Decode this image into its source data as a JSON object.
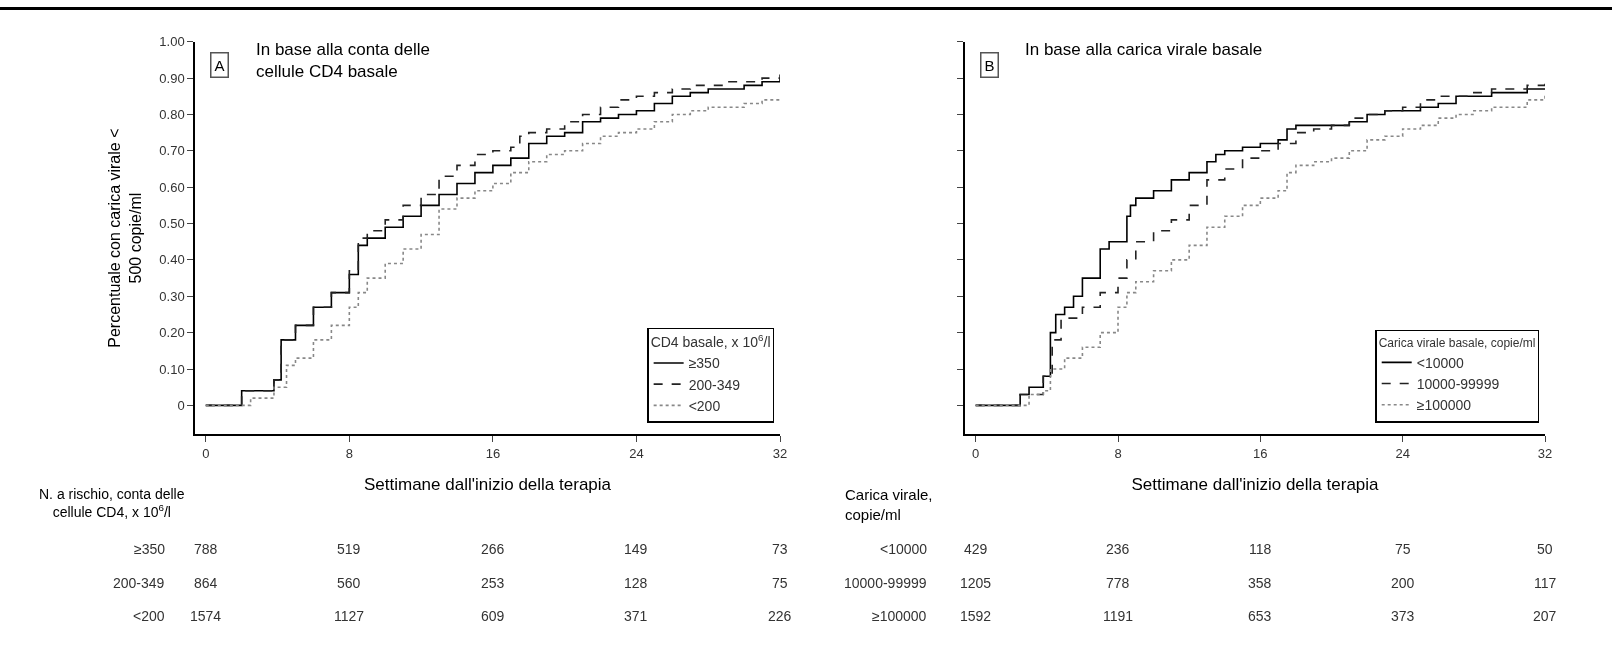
{
  "chart_data": [
    {
      "type": "step",
      "title": "In base alla conta delle\ncellule CD4 basale",
      "xlabel": "Settimane dall'inizio della terapia",
      "ylabel": "Percentuale con carica virale <\n500 copie/ml",
      "legend_title": "CD4 basale, x 10$^{6}$/l",
      "legend": "bottom right",
      "xlim": [
        -0.6,
        32
      ],
      "ylim": [
        -0.08,
        1.0
      ],
      "xticks": [
        0,
        8,
        16,
        24,
        32
      ],
      "yticks": [
        0,
        {
          "value": 0.1,
          "label": "0.10"
        },
        {
          "value": 0.2,
          "label": "0.20"
        },
        {
          "value": 0.3,
          "label": "0.30"
        },
        {
          "value": 0.4,
          "label": "0.40"
        },
        {
          "value": 0.5,
          "label": "0.50"
        },
        {
          "value": 0.6,
          "label": "0.60"
        },
        {
          "value": 0.7,
          "label": "0.70"
        },
        {
          "value": 0.8,
          "label": "0.80"
        },
        {
          "value": 0.9,
          "label": "0.90"
        },
        {
          "value": 1.0,
          "label": "1.00"
        }
      ],
      "series": [
        {
          "name": "≥350",
          "color": "#000000",
          "line_style": "solid",
          "x": [
            0,
            1.5,
            2,
            3.8,
            4.2,
            5,
            6,
            7,
            8,
            8.5,
            9,
            10,
            11,
            12,
            13,
            14,
            15,
            16,
            17,
            18,
            19,
            20,
            21,
            22,
            23,
            24,
            25,
            26,
            27,
            28,
            29,
            30,
            31,
            32
          ],
          "values": [
            0,
            0,
            0.04,
            0.07,
            0.18,
            0.22,
            0.27,
            0.31,
            0.36,
            0.44,
            0.46,
            0.49,
            0.52,
            0.55,
            0.58,
            0.61,
            0.64,
            0.66,
            0.68,
            0.72,
            0.74,
            0.75,
            0.78,
            0.79,
            0.8,
            0.81,
            0.83,
            0.85,
            0.86,
            0.87,
            0.87,
            0.88,
            0.89,
            0.9
          ]
        },
        {
          "name": "200-349",
          "color": "#222222",
          "line_style": "dashed",
          "x": [
            0,
            1.6,
            2,
            3.8,
            4.2,
            5,
            6,
            7,
            8,
            8.5,
            9,
            10,
            11,
            12,
            13,
            14,
            15,
            16,
            17,
            17.5,
            18,
            19,
            20,
            21,
            22,
            23,
            24,
            25,
            26,
            27,
            28,
            29,
            30,
            31,
            32
          ],
          "values": [
            0,
            0,
            0.04,
            0.07,
            0.18,
            0.22,
            0.27,
            0.31,
            0.37,
            0.46,
            0.48,
            0.51,
            0.55,
            0.58,
            0.63,
            0.66,
            0.69,
            0.7,
            0.71,
            0.74,
            0.75,
            0.76,
            0.78,
            0.8,
            0.82,
            0.84,
            0.85,
            0.86,
            0.87,
            0.88,
            0.88,
            0.89,
            0.89,
            0.9,
            0.91
          ]
        },
        {
          "name": "<200",
          "color": "#888888",
          "line_style": "dotted",
          "x": [
            0,
            1.8,
            2.5,
            3.8,
            4.5,
            5,
            6,
            7,
            8,
            8.5,
            9,
            10,
            11,
            12,
            13,
            14,
            15,
            16,
            17,
            18,
            19,
            20,
            21,
            22,
            23,
            24,
            25,
            26,
            27,
            28,
            29,
            30,
            31,
            32
          ],
          "values": [
            0,
            0,
            0.02,
            0.05,
            0.11,
            0.13,
            0.18,
            0.22,
            0.27,
            0.31,
            0.35,
            0.39,
            0.43,
            0.47,
            0.54,
            0.57,
            0.59,
            0.61,
            0.64,
            0.67,
            0.69,
            0.7,
            0.72,
            0.74,
            0.75,
            0.76,
            0.78,
            0.8,
            0.81,
            0.82,
            0.82,
            0.83,
            0.84,
            0.84
          ]
        }
      ],
      "annotations": [
        "A",
        "N. a rischio, conta delle\ncellule CD4, x 10$^{6}$/l",
        "≥350",
        "788",
        "519",
        "266",
        "149",
        "73",
        "200-349",
        "864",
        "560",
        "253",
        "128",
        "75",
        "<200",
        "1574",
        "1127",
        "609",
        "371",
        "226"
      ]
    },
    {
      "type": "step",
      "title": "In base alla carica virale basale",
      "xlabel": "Settimane dall'inizio della terapia",
      "legend_title": "Carica virale basale, copie/ml",
      "legend": "bottom right",
      "tick_labels": "x",
      "xlim": [
        -0.6,
        32
      ],
      "ylim": [
        -0.08,
        1.0
      ],
      "xticks": [
        0,
        8,
        16,
        24,
        32
      ],
      "yticks": [
        {
          "value": 0,
          "label": null
        },
        {
          "value": 0.1,
          "label": null
        },
        {
          "value": 0.2,
          "label": null
        },
        {
          "value": 0.3,
          "label": null
        },
        {
          "value": 0.4,
          "label": null
        },
        {
          "value": 0.5,
          "label": null
        },
        {
          "value": 0.6,
          "label": null
        },
        {
          "value": 0.7,
          "label": null
        },
        {
          "value": 0.8,
          "label": null
        },
        {
          "value": 0.9,
          "label": null
        },
        {
          "value": 1.0,
          "label": null
        }
      ],
      "series": [
        {
          "name": "<10000",
          "color": "#000000",
          "line_style": "solid",
          "x": [
            0,
            1.8,
            2.5,
            3,
            3.8,
            4.2,
            4.5,
            5,
            5.5,
            6,
            7,
            7.5,
            8.5,
            8.7,
            9,
            10,
            11,
            12,
            13,
            13.5,
            14,
            15,
            16,
            17,
            17.5,
            18,
            19,
            20,
            21,
            22,
            23,
            24,
            25,
            26,
            27,
            28,
            29,
            30,
            31,
            32
          ],
          "values": [
            0,
            0,
            0.03,
            0.05,
            0.08,
            0.2,
            0.25,
            0.27,
            0.3,
            0.35,
            0.43,
            0.45,
            0.52,
            0.55,
            0.57,
            0.59,
            0.62,
            0.64,
            0.67,
            0.69,
            0.7,
            0.71,
            0.72,
            0.73,
            0.76,
            0.77,
            0.77,
            0.77,
            0.78,
            0.8,
            0.81,
            0.81,
            0.82,
            0.83,
            0.85,
            0.85,
            0.86,
            0.86,
            0.87,
            0.87
          ]
        },
        {
          "name": "10000-99999",
          "color": "#222222",
          "line_style": "dashed",
          "x": [
            0,
            1.8,
            2.5,
            3.8,
            4.3,
            4.8,
            6,
            7,
            8,
            8.5,
            9,
            10,
            11,
            12,
            13,
            14,
            15,
            16,
            17,
            18,
            19,
            20,
            21,
            22,
            23,
            24,
            25,
            26,
            27,
            28,
            29,
            30,
            31,
            32
          ],
          "values": [
            0,
            0,
            0.03,
            0.08,
            0.18,
            0.24,
            0.27,
            0.31,
            0.35,
            0.4,
            0.45,
            0.48,
            0.51,
            0.55,
            0.62,
            0.65,
            0.68,
            0.7,
            0.72,
            0.75,
            0.76,
            0.77,
            0.79,
            0.8,
            0.81,
            0.82,
            0.84,
            0.85,
            0.85,
            0.86,
            0.87,
            0.87,
            0.88,
            0.89
          ]
        },
        {
          "name": "≥100000",
          "color": "#888888",
          "line_style": "dotted",
          "x": [
            0,
            1.8,
            3,
            3.8,
            4.2,
            5,
            6,
            7,
            8,
            8.5,
            9,
            10,
            11,
            12,
            13,
            14,
            15,
            16,
            17,
            17.5,
            18,
            19,
            20,
            21,
            22,
            23,
            24,
            25,
            26,
            27,
            28,
            29,
            30,
            31,
            32
          ],
          "values": [
            0,
            0,
            0.03,
            0.04,
            0.1,
            0.13,
            0.16,
            0.2,
            0.27,
            0.31,
            0.34,
            0.37,
            0.4,
            0.44,
            0.49,
            0.52,
            0.55,
            0.57,
            0.59,
            0.64,
            0.66,
            0.67,
            0.68,
            0.7,
            0.73,
            0.74,
            0.76,
            0.77,
            0.79,
            0.8,
            0.81,
            0.82,
            0.82,
            0.84,
            0.86
          ]
        }
      ],
      "annotations": [
        "B",
        "Carica virale,\ncopie/ml",
        "<10000",
        "429",
        "236",
        "118",
        "75",
        "50",
        "10000-99999",
        "1205",
        "778",
        "358",
        "200",
        "117",
        "≥100000",
        "1592",
        "1191",
        "653",
        "373",
        "207"
      ]
    }
  ]
}
